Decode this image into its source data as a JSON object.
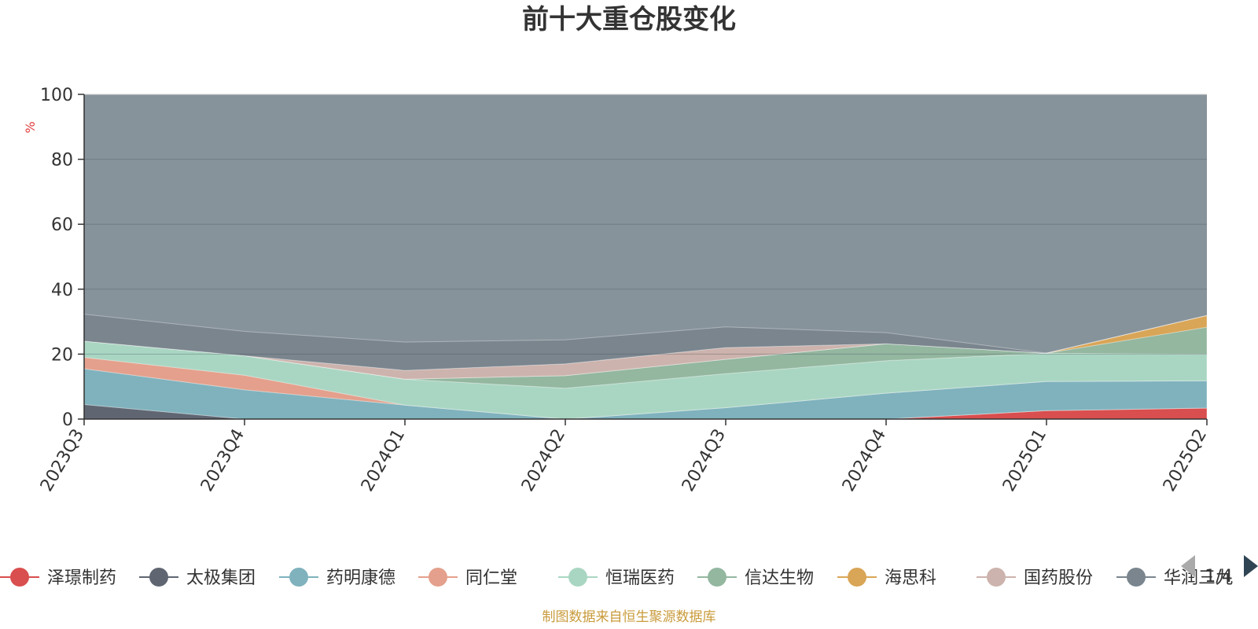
{
  "chart_data": {
    "type": "area",
    "stacked": true,
    "title": "前十大重仓股变化",
    "ylabel": "%",
    "ylim": [
      0,
      100
    ],
    "yticks": [
      0,
      20,
      40,
      60,
      80,
      100
    ],
    "x": [
      "2023Q3",
      "2023Q4",
      "2024Q1",
      "2024Q2",
      "2024Q3",
      "2024Q4",
      "2025Q1",
      "2025Q2"
    ],
    "series": [
      {
        "name": "泽璟制药",
        "color": "#d94e4e",
        "values": [
          0,
          0,
          0,
          0,
          0,
          0,
          2.6,
          3.4
        ]
      },
      {
        "name": "太极集团",
        "color": "#5f6672",
        "values": [
          4.5,
          0,
          0,
          0,
          0,
          0,
          0,
          0
        ]
      },
      {
        "name": "药明康德",
        "color": "#7fb2bd",
        "values": [
          11,
          9,
          4.3,
          0,
          3.5,
          8,
          9,
          8.4
        ]
      },
      {
        "name": "同仁堂",
        "color": "#e4a08c",
        "values": [
          3.5,
          4.5,
          0,
          0,
          0,
          0,
          0,
          0
        ]
      },
      {
        "name": "恒瑞医药",
        "color": "#a9d6c2",
        "values": [
          5,
          6,
          8,
          9.5,
          10.5,
          10,
          8.7,
          8.2
        ]
      },
      {
        "name": "信达生物",
        "color": "#93b79f",
        "values": [
          0,
          0,
          0,
          3.9,
          4.4,
          5.2,
          0,
          8.3
        ]
      },
      {
        "name": "海思科",
        "color": "#d9a556",
        "values": [
          0,
          0,
          0,
          0,
          0,
          0,
          0,
          3.6
        ]
      },
      {
        "name": "国药股份",
        "color": "#cdb3ad",
        "values": [
          0,
          0,
          2.7,
          3.6,
          3.6,
          0,
          0,
          0
        ]
      },
      {
        "name": "华润三九",
        "color": "#7a858e",
        "values": [
          8.3,
          7.5,
          8.7,
          7.4,
          6.4,
          3.4,
          0,
          0
        ]
      }
    ],
    "legend_position": "bottom",
    "legend_page": "1/4",
    "footnote": "制图数据来自恒生聚源数据库"
  }
}
